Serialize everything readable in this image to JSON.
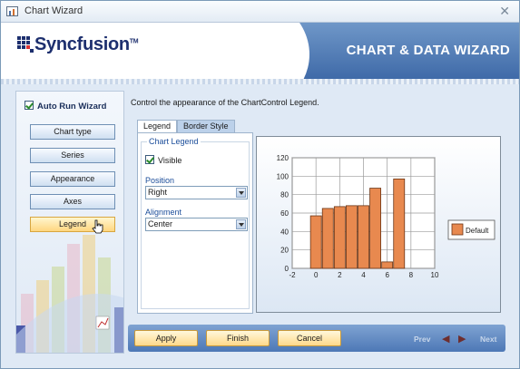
{
  "window": {
    "title": "Chart Wizard"
  },
  "header": {
    "brand": "Syncfusion",
    "trademark": "TM",
    "title": "CHART & DATA WIZARD"
  },
  "sidebar": {
    "auto_run_label": "Auto Run Wizard",
    "auto_run_checked": true,
    "items": [
      {
        "label": "Chart type"
      },
      {
        "label": "Series"
      },
      {
        "label": "Appearance"
      },
      {
        "label": "Axes"
      },
      {
        "label": "Legend",
        "selected": true
      }
    ]
  },
  "main": {
    "instructions": "Control the appearance of the ChartControl Legend.",
    "tabs": [
      {
        "label": "Legend",
        "active": true
      },
      {
        "label": "Border Style",
        "active": false
      }
    ],
    "group_title": "Chart Legend",
    "visible_label": "Visible",
    "visible_checked": true,
    "position_label": "Position",
    "position_value": "Right",
    "alignment_label": "Alignment",
    "alignment_value": "Center"
  },
  "chart_data": {
    "type": "bar",
    "series": [
      {
        "name": "Default",
        "x": [
          0,
          1,
          2,
          3,
          4,
          5,
          6,
          7
        ],
        "values": [
          57,
          65,
          67,
          68,
          68,
          87,
          7,
          97
        ]
      }
    ],
    "xlim": [
      -2,
      10
    ],
    "ylim": [
      0,
      120
    ],
    "x_ticks": [
      -2,
      0,
      2,
      4,
      6,
      8,
      10
    ],
    "y_ticks": [
      0,
      20,
      40,
      60,
      80,
      100,
      120
    ],
    "grid": true,
    "legend_position": "right",
    "bar_color": "#e8894f",
    "bar_stroke": "#6b3414"
  },
  "footer": {
    "apply_label": "Apply",
    "finish_label": "Finish",
    "cancel_label": "Cancel",
    "prev_label": "Prev",
    "next_label": "Next"
  }
}
